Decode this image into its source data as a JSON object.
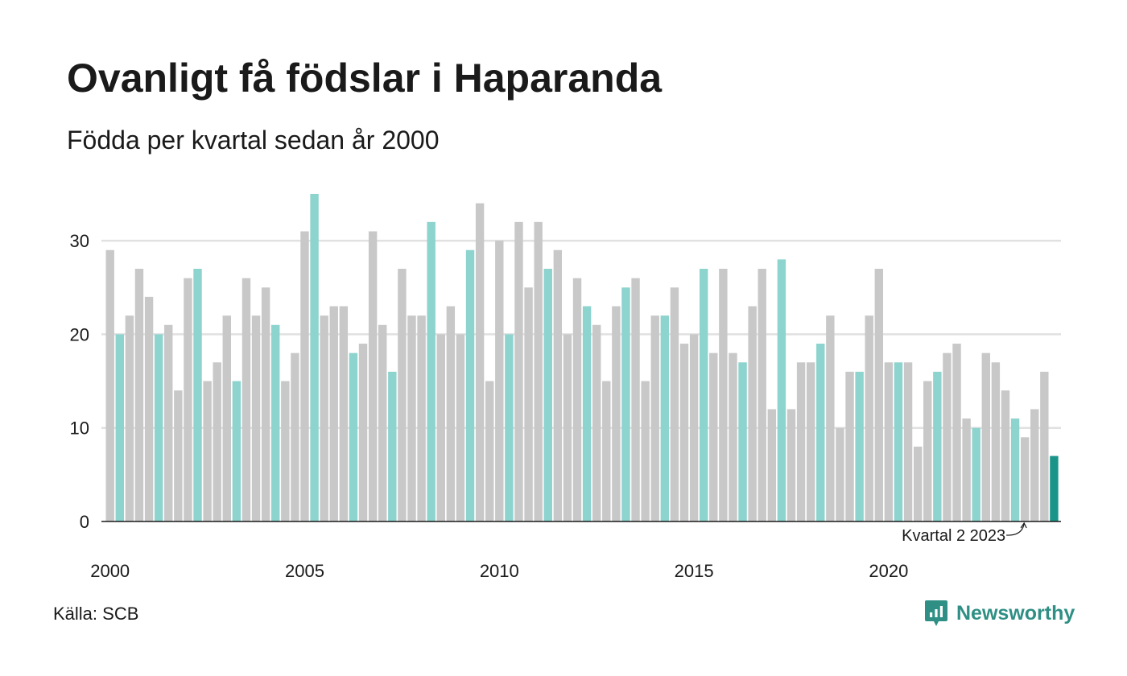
{
  "header": {
    "title": "Ovanligt få födslar i Haparanda",
    "subtitle": "Födda per kvartal sedan år 2000"
  },
  "footer": {
    "source": "Källa: SCB",
    "brand": "Newsworthy"
  },
  "colors": {
    "other_quarter": "#c8c8c8",
    "same_quarter": "#8dd3ce",
    "latest": "#1a9488",
    "grid": "#e1e1e1",
    "axis": "#1a1a1a",
    "brand": "#2f8f84"
  },
  "chart_data": {
    "type": "bar",
    "title": "Ovanligt få födslar i Haparanda",
    "subtitle": "Födda per kvartal sedan år 2000",
    "xlabel": "",
    "ylabel": "",
    "ylim": [
      0,
      35
    ],
    "yticks": [
      0,
      10,
      20,
      30
    ],
    "xticks": [
      {
        "label": "2000",
        "index": 0
      },
      {
        "label": "2005",
        "index": 20
      },
      {
        "label": "2010",
        "index": 40
      },
      {
        "label": "2015",
        "index": 60
      },
      {
        "label": "2020",
        "index": 80
      }
    ],
    "grid": true,
    "start_year": 2000,
    "values": [
      29,
      20,
      22,
      27,
      24,
      20,
      21,
      14,
      26,
      27,
      15,
      17,
      22,
      15,
      26,
      22,
      25,
      21,
      15,
      18,
      31,
      35,
      22,
      23,
      23,
      18,
      19,
      31,
      21,
      16,
      27,
      22,
      22,
      32,
      20,
      23,
      20,
      29,
      34,
      15,
      30,
      20,
      32,
      25,
      32,
      27,
      29,
      20,
      26,
      23,
      21,
      15,
      23,
      25,
      26,
      15,
      22,
      22,
      25,
      19,
      20,
      27,
      18,
      27,
      18,
      17,
      23,
      27,
      12,
      28,
      12,
      17,
      17,
      19,
      22,
      10,
      16,
      16,
      22,
      27,
      17,
      17,
      17,
      8,
      15,
      16,
      18,
      19,
      11,
      10,
      18,
      17,
      14,
      11,
      9,
      12,
      16,
      7
    ],
    "highlight_quarter": 2,
    "annotation": {
      "text": "Kvartal 2 2023",
      "index": 94
    }
  }
}
